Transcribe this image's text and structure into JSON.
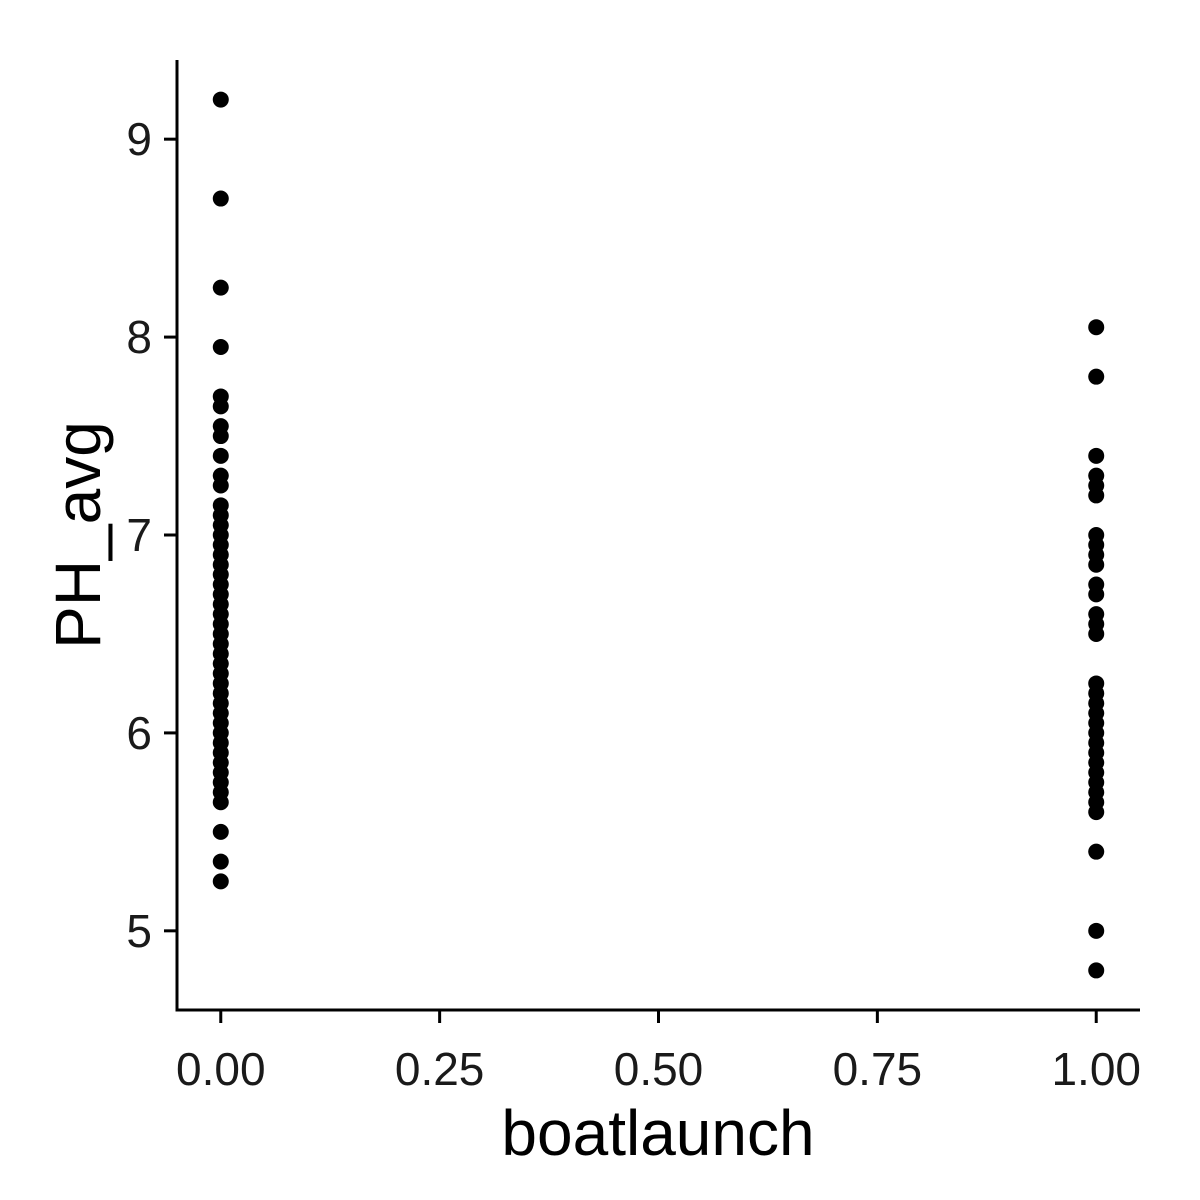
{
  "chart_data": {
    "type": "scatter",
    "title": "",
    "xlabel": "boatlaunch",
    "ylabel": "PH_avg",
    "xlim": [
      -0.05,
      1.05
    ],
    "ylim": [
      4.6,
      9.4
    ],
    "x_ticks": [
      0,
      0.25,
      0.5,
      0.75,
      1
    ],
    "x_tick_labels": [
      "0.00",
      "0.25",
      "0.50",
      "0.75",
      "1.00"
    ],
    "y_ticks": [
      5,
      6,
      7,
      8,
      9
    ],
    "y_tick_labels": [
      "5",
      "6",
      "7",
      "8",
      "9"
    ],
    "grid": false,
    "point_color": "#000000",
    "points": [
      {
        "x": 0,
        "y": 9.2
      },
      {
        "x": 0,
        "y": 8.7
      },
      {
        "x": 0,
        "y": 8.25
      },
      {
        "x": 0,
        "y": 7.95
      },
      {
        "x": 0,
        "y": 7.7
      },
      {
        "x": 0,
        "y": 7.65
      },
      {
        "x": 0,
        "y": 7.55
      },
      {
        "x": 0,
        "y": 7.5
      },
      {
        "x": 0,
        "y": 7.4
      },
      {
        "x": 0,
        "y": 7.3
      },
      {
        "x": 0,
        "y": 7.25
      },
      {
        "x": 0,
        "y": 7.15
      },
      {
        "x": 0,
        "y": 7.1
      },
      {
        "x": 0,
        "y": 7.05
      },
      {
        "x": 0,
        "y": 7.0
      },
      {
        "x": 0,
        "y": 6.95
      },
      {
        "x": 0,
        "y": 6.9
      },
      {
        "x": 0,
        "y": 6.85
      },
      {
        "x": 0,
        "y": 6.8
      },
      {
        "x": 0,
        "y": 6.75
      },
      {
        "x": 0,
        "y": 6.7
      },
      {
        "x": 0,
        "y": 6.65
      },
      {
        "x": 0,
        "y": 6.6
      },
      {
        "x": 0,
        "y": 6.55
      },
      {
        "x": 0,
        "y": 6.5
      },
      {
        "x": 0,
        "y": 6.45
      },
      {
        "x": 0,
        "y": 6.4
      },
      {
        "x": 0,
        "y": 6.35
      },
      {
        "x": 0,
        "y": 6.3
      },
      {
        "x": 0,
        "y": 6.25
      },
      {
        "x": 0,
        "y": 6.2
      },
      {
        "x": 0,
        "y": 6.15
      },
      {
        "x": 0,
        "y": 6.1
      },
      {
        "x": 0,
        "y": 6.05
      },
      {
        "x": 0,
        "y": 6.0
      },
      {
        "x": 0,
        "y": 5.95
      },
      {
        "x": 0,
        "y": 5.9
      },
      {
        "x": 0,
        "y": 5.85
      },
      {
        "x": 0,
        "y": 5.8
      },
      {
        "x": 0,
        "y": 5.75
      },
      {
        "x": 0,
        "y": 5.7
      },
      {
        "x": 0,
        "y": 5.65
      },
      {
        "x": 0,
        "y": 5.5
      },
      {
        "x": 0,
        "y": 5.35
      },
      {
        "x": 0,
        "y": 5.25
      },
      {
        "x": 1,
        "y": 8.05
      },
      {
        "x": 1,
        "y": 7.8
      },
      {
        "x": 1,
        "y": 7.4
      },
      {
        "x": 1,
        "y": 7.3
      },
      {
        "x": 1,
        "y": 7.25
      },
      {
        "x": 1,
        "y": 7.2
      },
      {
        "x": 1,
        "y": 7.0
      },
      {
        "x": 1,
        "y": 6.95
      },
      {
        "x": 1,
        "y": 6.9
      },
      {
        "x": 1,
        "y": 6.85
      },
      {
        "x": 1,
        "y": 6.75
      },
      {
        "x": 1,
        "y": 6.7
      },
      {
        "x": 1,
        "y": 6.6
      },
      {
        "x": 1,
        "y": 6.55
      },
      {
        "x": 1,
        "y": 6.5
      },
      {
        "x": 1,
        "y": 6.25
      },
      {
        "x": 1,
        "y": 6.2
      },
      {
        "x": 1,
        "y": 6.15
      },
      {
        "x": 1,
        "y": 6.1
      },
      {
        "x": 1,
        "y": 6.05
      },
      {
        "x": 1,
        "y": 6.0
      },
      {
        "x": 1,
        "y": 5.95
      },
      {
        "x": 1,
        "y": 5.9
      },
      {
        "x": 1,
        "y": 5.85
      },
      {
        "x": 1,
        "y": 5.8
      },
      {
        "x": 1,
        "y": 5.75
      },
      {
        "x": 1,
        "y": 5.7
      },
      {
        "x": 1,
        "y": 5.65
      },
      {
        "x": 1,
        "y": 5.6
      },
      {
        "x": 1,
        "y": 5.4
      },
      {
        "x": 1,
        "y": 5.0
      },
      {
        "x": 1,
        "y": 4.8
      }
    ]
  }
}
